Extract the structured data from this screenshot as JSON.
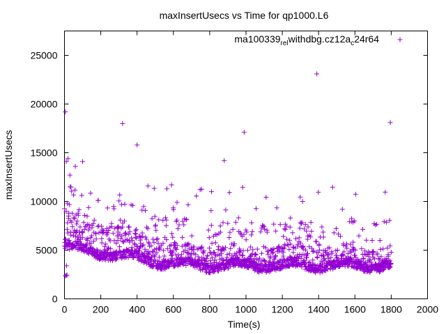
{
  "chart_data": {
    "type": "scatter",
    "title": "maxInsertUsecs vs Time for qp1000.L6",
    "xlabel": "Time(s)",
    "ylabel": "maxInsertUsecs",
    "xlim": [
      0,
      2000
    ],
    "ylim": [
      0,
      27500
    ],
    "xticks": [
      "0",
      "200",
      "400",
      "600",
      "800",
      "1000",
      "1200",
      "1400",
      "1600",
      "1800",
      "2000"
    ],
    "yticks": [
      "0",
      "5000",
      "10000",
      "15000",
      "20000",
      "25000"
    ],
    "grid": false,
    "legend_position": "top-right",
    "legend": {
      "parts": [
        "ma100339",
        "rel",
        "withdbg.cz12a",
        "c",
        "24r64"
      ],
      "subscript": [
        false,
        true,
        false,
        true,
        false
      ]
    },
    "marker": "+",
    "series_color": "#9400d3",
    "series": [
      {
        "x": [
          5,
          10,
          20,
          30,
          60,
          100,
          320,
          400,
          460,
          590,
          620,
          810,
          880,
          990,
          1390,
          1795
        ],
        "y": [
          19200,
          14100,
          14400,
          12700,
          13600,
          14100,
          18000,
          15800,
          11600,
          11700,
          9900,
          11000,
          14200,
          17100,
          23100,
          18100
        ]
      },
      {
        "generated": true,
        "x_range": [
          0,
          1800
        ],
        "count": 1800
      }
    ]
  }
}
